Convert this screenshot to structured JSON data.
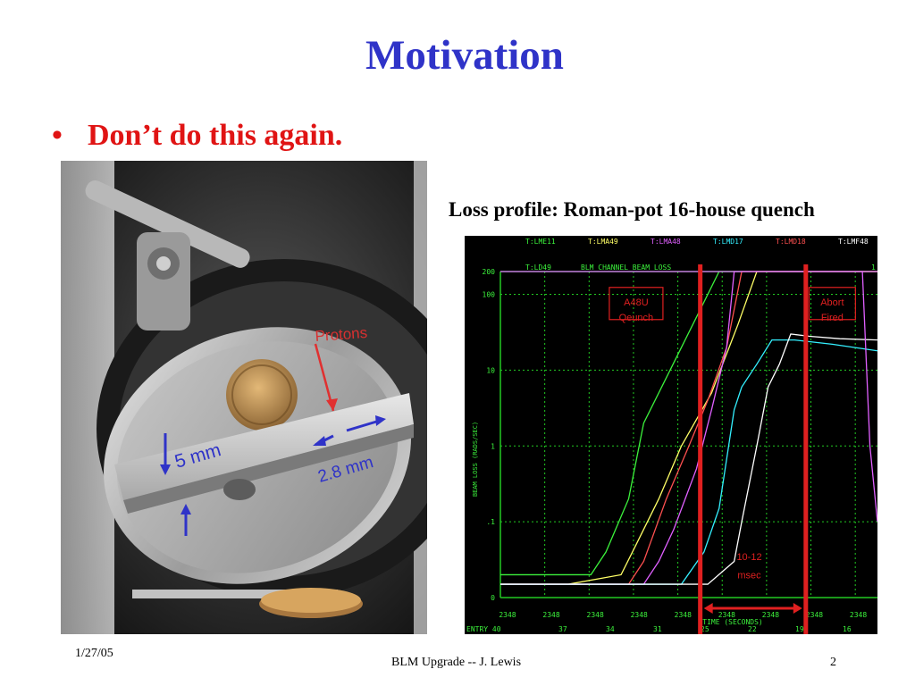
{
  "slide": {
    "title": "Motivation",
    "bullet_symbol": "•",
    "bullet": "Don’t do this again."
  },
  "photo": {
    "label_protons": "Protons",
    "label_5mm": "5 mm",
    "label_28mm": "2.8 mm",
    "accent_color": "#2f33c8",
    "red_label_color": "#d83030"
  },
  "chart_caption": "Loss profile: Roman-pot 16-house quench",
  "chart_data": {
    "type": "line",
    "channels_top": [
      "T:LME11",
      "T:LMA49",
      "T:LMA48",
      "T:LMD17",
      "T:LMD18",
      "T:LMF48"
    ],
    "channels_top_colors": [
      "#3cf23c",
      "#ffff66",
      "#e060ff",
      "#34f0ff",
      "#ff5050",
      "#ffffff"
    ],
    "header_left": "T:LD49",
    "header_mid": "BLM CHANNEL BEAM LOSS",
    "header_right": "1",
    "ylabel": "BEAM LOSS (RADS/SEC)",
    "yscale": "log",
    "ylim": [
      0.01,
      200
    ],
    "ytick_labels": [
      "200",
      "100",
      "10",
      "1",
      ".1",
      "0"
    ],
    "ytick_values": [
      200,
      100,
      10,
      1,
      0.1,
      0.01
    ],
    "x_tick_labels": [
      "2348",
      "2348",
      "2348",
      "2348",
      "2348",
      "2348",
      "2348",
      "2348",
      "2348"
    ],
    "bottom_row": [
      "ENTRY 40",
      "37",
      "34",
      "31",
      "25",
      "22",
      "19",
      "16"
    ],
    "xlabel": "TIME (SECONDS)",
    "xlim": [
      0,
      100
    ],
    "series": [
      {
        "color": "#3cf23c",
        "x": [
          0,
          24,
          28,
          34,
          38,
          45,
          52,
          58,
          64,
          72,
          100
        ],
        "y": [
          0.02,
          0.02,
          0.04,
          0.2,
          2,
          10,
          50,
          200,
          200,
          200,
          200
        ]
      },
      {
        "color": "#ffff66",
        "x": [
          0,
          18,
          32,
          36,
          42,
          48,
          56,
          63,
          68,
          100
        ],
        "y": [
          0.015,
          0.015,
          0.02,
          0.05,
          0.2,
          1,
          5,
          40,
          200,
          200
        ]
      },
      {
        "color": "#ff5050",
        "x": [
          0,
          34,
          38,
          44,
          50,
          55,
          60,
          64,
          100
        ],
        "y": [
          0.015,
          0.015,
          0.03,
          0.2,
          1,
          4,
          20,
          200,
          200
        ]
      },
      {
        "color": "#e060ff",
        "x": [
          0,
          38,
          42,
          46,
          52,
          56,
          60,
          62,
          100
        ],
        "y": [
          0.015,
          0.015,
          0.03,
          0.08,
          0.5,
          3,
          20,
          200,
          200
        ]
      },
      {
        "color": "#34f0ff",
        "x": [
          0,
          48,
          54,
          58,
          62,
          64,
          68,
          72,
          78,
          88,
          100
        ],
        "y": [
          0.015,
          0.015,
          0.04,
          0.15,
          3,
          6,
          12,
          25,
          25,
          22,
          18
        ]
      },
      {
        "color": "#ffffff",
        "x": [
          0,
          55,
          62,
          64,
          68,
          71,
          74,
          77,
          82,
          90,
          100
        ],
        "y": [
          0.015,
          0.015,
          0.03,
          0.1,
          1,
          6,
          12,
          30,
          28,
          26,
          25
        ]
      },
      {
        "color": "#e060ff",
        "x": [
          0,
          96,
          98,
          100
        ],
        "y": [
          200,
          200,
          1,
          0.1
        ]
      }
    ],
    "annotations": [
      {
        "text": "A48U",
        "x": 36,
        "y": 80
      },
      {
        "text": "Qeunch",
        "x": 36,
        "y": 50
      },
      {
        "text": "Abort",
        "x": 88,
        "y": 80
      },
      {
        "text": "Fired",
        "x": 88,
        "y": 50
      },
      {
        "text": "10-12",
        "x": 66,
        "y": 0.035
      },
      {
        "text": "msec",
        "x": 66,
        "y": 0.02
      }
    ],
    "markers": {
      "x_start": 53,
      "x_end": 81,
      "color": "#e02020"
    },
    "grid": true
  },
  "footer": {
    "date": "1/27/05",
    "center": "BLM Upgrade -- J. Lewis",
    "page": "2"
  }
}
